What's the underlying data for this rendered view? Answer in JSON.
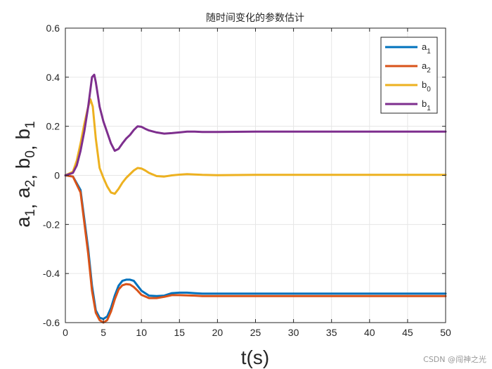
{
  "chart_data": {
    "type": "line",
    "title": "随时间变化的参数估计",
    "xlabel": "t(s)",
    "ylabel": "a1, a2, b0, b1",
    "xlim": [
      0,
      50
    ],
    "ylim": [
      -0.6,
      0.6
    ],
    "xticks": [
      0,
      5,
      10,
      15,
      20,
      25,
      30,
      35,
      40,
      45,
      50
    ],
    "yticks": [
      -0.6,
      -0.4,
      -0.2,
      0,
      0.2,
      0.4,
      0.6
    ],
    "grid": true,
    "legend_position": "top-right",
    "series": [
      {
        "name": "a1",
        "legend_base": "a",
        "legend_sub": "1",
        "color": "#0072BD",
        "x": [
          0,
          1,
          2,
          3,
          3.5,
          4,
          4.5,
          5,
          5.5,
          6,
          6.5,
          7,
          7.5,
          8,
          8.5,
          9,
          9.5,
          10,
          11,
          12,
          13,
          14,
          15,
          16,
          17,
          18,
          20,
          25,
          30,
          40,
          50
        ],
        "y": [
          0,
          -0.005,
          -0.06,
          -0.3,
          -0.45,
          -0.55,
          -0.58,
          -0.585,
          -0.575,
          -0.54,
          -0.49,
          -0.45,
          -0.43,
          -0.425,
          -0.425,
          -0.43,
          -0.45,
          -0.47,
          -0.49,
          -0.492,
          -0.49,
          -0.48,
          -0.478,
          -0.478,
          -0.48,
          -0.482,
          -0.482,
          -0.482,
          -0.482,
          -0.482,
          -0.482
        ]
      },
      {
        "name": "a2",
        "legend_base": "a",
        "legend_sub": "2",
        "color": "#D95319",
        "x": [
          0,
          1,
          2,
          3,
          3.5,
          4,
          4.5,
          5,
          5.5,
          6,
          6.5,
          7,
          7.5,
          8,
          8.5,
          9,
          9.5,
          10,
          11,
          12,
          13,
          14,
          15,
          16,
          17,
          18,
          20,
          25,
          30,
          40,
          50
        ],
        "y": [
          0,
          -0.005,
          -0.07,
          -0.32,
          -0.47,
          -0.56,
          -0.59,
          -0.6,
          -0.59,
          -0.555,
          -0.505,
          -0.465,
          -0.448,
          -0.443,
          -0.445,
          -0.455,
          -0.47,
          -0.487,
          -0.5,
          -0.5,
          -0.495,
          -0.488,
          -0.488,
          -0.489,
          -0.49,
          -0.492,
          -0.492,
          -0.492,
          -0.492,
          -0.492,
          -0.492
        ]
      },
      {
        "name": "b0",
        "legend_base": "b",
        "legend_sub": "0",
        "color": "#EDB120",
        "x": [
          0,
          1,
          1.5,
          2,
          2.5,
          3,
          3.3,
          3.6,
          4,
          4.5,
          5,
          5.5,
          6,
          6.5,
          7,
          7.5,
          8,
          9,
          9.5,
          10,
          10.5,
          11,
          12,
          13,
          14,
          15,
          16,
          18,
          20,
          25,
          30,
          40,
          50
        ],
        "y": [
          0,
          0.015,
          0.06,
          0.13,
          0.21,
          0.28,
          0.31,
          0.28,
          0.15,
          0.03,
          -0.01,
          -0.045,
          -0.07,
          -0.075,
          -0.055,
          -0.03,
          -0.01,
          0.02,
          0.03,
          0.028,
          0.02,
          0.01,
          -0.003,
          -0.005,
          0,
          0.003,
          0.005,
          0.002,
          0.001,
          0.002,
          0.002,
          0.002,
          0.002
        ]
      },
      {
        "name": "b1",
        "legend_base": "b",
        "legend_sub": "1",
        "color": "#7E2F8E",
        "x": [
          0,
          1,
          1.5,
          2,
          2.5,
          3,
          3.5,
          3.8,
          4,
          4.5,
          5,
          5.5,
          6,
          6.5,
          7,
          7.5,
          8,
          8.5,
          9,
          9.5,
          10,
          10.5,
          11,
          12,
          13,
          14,
          15,
          16,
          17,
          18,
          20,
          25,
          30,
          40,
          50
        ],
        "y": [
          0,
          0.01,
          0.04,
          0.1,
          0.18,
          0.28,
          0.4,
          0.41,
          0.38,
          0.28,
          0.22,
          0.175,
          0.13,
          0.1,
          0.108,
          0.13,
          0.15,
          0.165,
          0.185,
          0.2,
          0.198,
          0.19,
          0.183,
          0.175,
          0.17,
          0.172,
          0.175,
          0.178,
          0.178,
          0.177,
          0.177,
          0.178,
          0.178,
          0.178,
          0.178
        ]
      }
    ]
  },
  "watermark": "CSDN @闯神之光"
}
